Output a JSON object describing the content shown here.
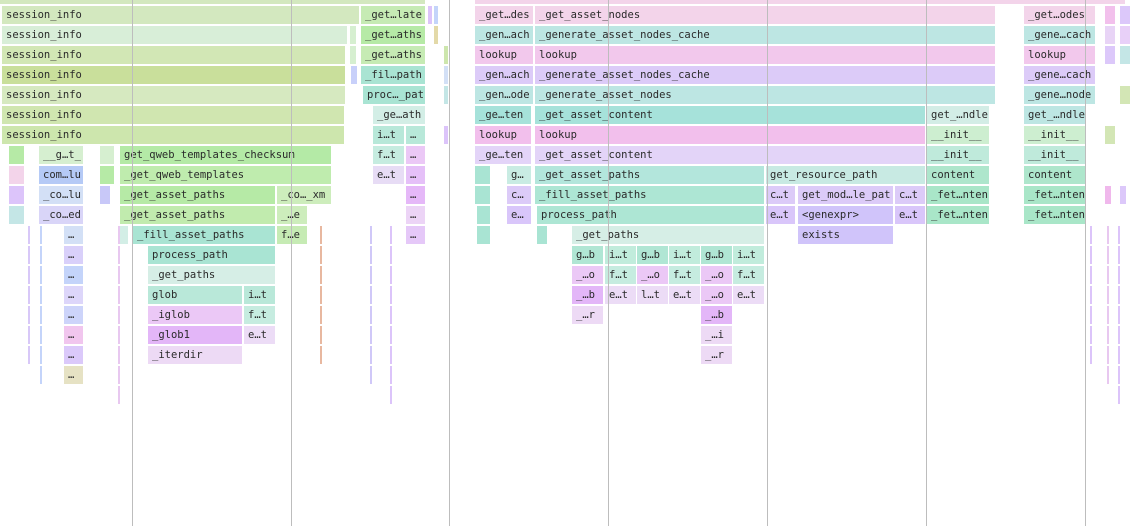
{
  "colors": {
    "gridline": "#bdbdbd"
  },
  "frames": [
    {
      "label": "session_info",
      "color": "#d3e8bf"
    },
    {
      "label": "session_info",
      "color": "#d8eed8"
    },
    {
      "label": "session_info",
      "color": "#d2e7b5"
    },
    {
      "label": "session_info",
      "color": "#c9df9b"
    },
    {
      "label": "session_info",
      "color": "#d6e9c0"
    },
    {
      "label": "session_info",
      "color": "#d0e6b0"
    },
    {
      "label": "session_info",
      "color": "#cde6ad"
    },
    {
      "label": "_get…late",
      "color": "#c6ebb4"
    },
    {
      "label": "_get…aths",
      "color": "#b6eaa6"
    },
    {
      "label": "_get…aths",
      "color": "#c6ebb4"
    },
    {
      "label": "_fil…path",
      "color": "#a9e4d3"
    },
    {
      "label": "proc…_pat",
      "color": "#a9e4d3"
    },
    {
      "label": "_ge…ath",
      "color": "#d3eee6"
    },
    {
      "label": "i…t",
      "color": "#b8e8d9"
    },
    {
      "label": "…",
      "color": "#b8e8d9"
    },
    {
      "label": "__g…t_",
      "color": "#d6efd0"
    },
    {
      "label": "get_qweb_templates_checksum",
      "color": "#b4eaa6"
    },
    {
      "label": "f…t",
      "color": "#c6ece0"
    },
    {
      "label": "…",
      "color": "#ebc8f6"
    },
    {
      "label": "com…lu",
      "color": "#b5caf6"
    },
    {
      "label": "_get_qweb_templates",
      "color": "#bfecae"
    },
    {
      "label": "e…t",
      "color": "#e7dcf5"
    },
    {
      "label": "…",
      "color": "#e5c0f8"
    },
    {
      "label": "_co…lu",
      "color": "#d3e0f6"
    },
    {
      "label": "_get_asset_paths",
      "color": "#b6eaa6"
    },
    {
      "label": "_co…_xm",
      "color": "#cdedbc"
    },
    {
      "label": "…",
      "color": "#e5b8f8"
    },
    {
      "label": "_co…ed",
      "color": "#d9d5f8"
    },
    {
      "label": "_get_asset_paths",
      "color": "#c1ebae"
    },
    {
      "label": "_…e",
      "color": "#cdedbc"
    },
    {
      "label": "…",
      "color": "#ecd4f6"
    },
    {
      "label": "_fill_asset_paths",
      "color": "#a9e4d3"
    },
    {
      "label": "f…e",
      "color": "#c6ebb4"
    },
    {
      "label": "…",
      "color": "#d3e0f6"
    },
    {
      "label": "…",
      "color": "#e5c8f8"
    },
    {
      "label": "…",
      "color": "#d9d0fa"
    },
    {
      "label": "process_path",
      "color": "#a9e4d3"
    },
    {
      "label": "…",
      "color": "#c4d4fa"
    },
    {
      "label": "_get_paths",
      "color": "#d6eee6"
    },
    {
      "label": "…",
      "color": "#ddd6fa"
    },
    {
      "label": "glob",
      "color": "#b9e8d9"
    },
    {
      "label": "i…t",
      "color": "#b9e8d9"
    },
    {
      "label": "…",
      "color": "#cdd4fa"
    },
    {
      "label": "_iglob",
      "color": "#ebc8f6"
    },
    {
      "label": "f…t",
      "color": "#c6ece0"
    },
    {
      "label": "…",
      "color": "#f1c6ee"
    },
    {
      "label": "_glob1",
      "color": "#e3b6f8"
    },
    {
      "label": "e…t",
      "color": "#ecdcf6"
    },
    {
      "label": "…",
      "color": "#dbc9fa"
    },
    {
      "label": "_iterdir",
      "color": "#eddaf5"
    },
    {
      "label": "…",
      "color": "#e6e2c4"
    },
    {
      "label": "_get…des",
      "color": "#f3d4ea"
    },
    {
      "label": "_get_asset_nodes",
      "color": "#f3d4ea"
    },
    {
      "label": "_gen…ach",
      "color": "#bde6e3"
    },
    {
      "label": "_generate_asset_nodes_cache",
      "color": "#bde6e3"
    },
    {
      "label": "lookup",
      "color": "#f2c8ec"
    },
    {
      "label": "lookup",
      "color": "#f2c8ec"
    },
    {
      "label": "_gen…ach",
      "color": "#dccbf8"
    },
    {
      "label": "_generate_asset_nodes_cache",
      "color": "#dccbf8"
    },
    {
      "label": "_gen…ode",
      "color": "#bde6e3"
    },
    {
      "label": "_generate_asset_nodes",
      "color": "#bde6e3"
    },
    {
      "label": "_ge…ten",
      "color": "#a6e2da"
    },
    {
      "label": "_get_asset_content",
      "color": "#a6e2da"
    },
    {
      "label": "get_…ndle",
      "color": "#d3ede6"
    },
    {
      "label": "lookup",
      "color": "#f2bfec"
    },
    {
      "label": "lookup",
      "color": "#f2bfec"
    },
    {
      "label": "__init__",
      "color": "#cdeed0"
    },
    {
      "label": "_ge…ten",
      "color": "#e3d4f8"
    },
    {
      "label": "_get_asset_content",
      "color": "#e3d4f8"
    },
    {
      "label": "__init__",
      "color": "#bfeadb"
    },
    {
      "label": "g…",
      "color": "#c9ece3"
    },
    {
      "label": "_get_asset_paths",
      "color": "#b3e6dc"
    },
    {
      "label": "get_resource_path",
      "color": "#c8eae3"
    },
    {
      "label": "content",
      "color": "#aee6cc"
    },
    {
      "label": "c…",
      "color": "#dccbf8"
    },
    {
      "label": "_fill_asset_paths",
      "color": "#ade6d4"
    },
    {
      "label": "c…t",
      "color": "#dccbf8"
    },
    {
      "label": "get_mod…le_pat",
      "color": "#dccbf8"
    },
    {
      "label": "c…t",
      "color": "#dccbf8"
    },
    {
      "label": "_fet…nten",
      "color": "#a9e6c8"
    },
    {
      "label": "e…",
      "color": "#d9c6fa"
    },
    {
      "label": "process_path",
      "color": "#ade6d4"
    },
    {
      "label": "e…t",
      "color": "#d9c6fa"
    },
    {
      "label": "<genexpr>",
      "color": "#d0c4fa"
    },
    {
      "label": "e…t",
      "color": "#d9c6fa"
    },
    {
      "label": "_fet…nten",
      "color": "#a9e6c8"
    },
    {
      "label": "_get_paths",
      "color": "#d6eee6"
    },
    {
      "label": "exists",
      "color": "#d0c4fa"
    },
    {
      "label": "g…b",
      "color": "#b0e6d4"
    },
    {
      "label": "i…t",
      "color": "#c1ecdc"
    },
    {
      "label": "g…b",
      "color": "#b0e6d4"
    },
    {
      "label": "i…t",
      "color": "#c1ecdc"
    },
    {
      "label": "g…b",
      "color": "#b0e6d4"
    },
    {
      "label": "i…t",
      "color": "#c1ecdc"
    },
    {
      "label": "_…o",
      "color": "#ebc8f6"
    },
    {
      "label": "f…t",
      "color": "#c6ece0"
    },
    {
      "label": "_…o",
      "color": "#ebc8f6"
    },
    {
      "label": "f…t",
      "color": "#c6ece0"
    },
    {
      "label": "_…o",
      "color": "#ebc8f6"
    },
    {
      "label": "f…t",
      "color": "#c6ece0"
    },
    {
      "label": "_…b",
      "color": "#e3b6f8"
    },
    {
      "label": "e…t",
      "color": "#ecdcf6"
    },
    {
      "label": "l…t",
      "color": "#ecdcf6"
    },
    {
      "label": "e…t",
      "color": "#ecdcf6"
    },
    {
      "label": "_…o",
      "color": "#ebc8f6"
    },
    {
      "label": "e…t",
      "color": "#ecdcf6"
    },
    {
      "label": "_…r",
      "color": "#eddaf5"
    },
    {
      "label": "_…b",
      "color": "#e3b6f8"
    },
    {
      "label": "_…i",
      "color": "#eddaf5"
    },
    {
      "label": "_…r",
      "color": "#eddaf5"
    },
    {
      "label": "_get…odes",
      "color": "#f3d4ea"
    },
    {
      "label": "_gene…cach",
      "color": "#bde6e3"
    },
    {
      "label": "lookup",
      "color": "#f2c8ec"
    },
    {
      "label": "_gene…cach",
      "color": "#dccbf8"
    },
    {
      "label": "_gene…node",
      "color": "#bde6e3"
    },
    {
      "label": "get_…ndle",
      "color": "#bde6e3"
    },
    {
      "label": "__init__",
      "color": "#cdeed0"
    },
    {
      "label": "__init__",
      "color": "#bfeadb"
    },
    {
      "label": "content",
      "color": "#aee6cc"
    },
    {
      "label": "_fet…nten",
      "color": "#a9e6c8"
    },
    {
      "label": "_fet…nten",
      "color": "#a9e6c8"
    }
  ]
}
